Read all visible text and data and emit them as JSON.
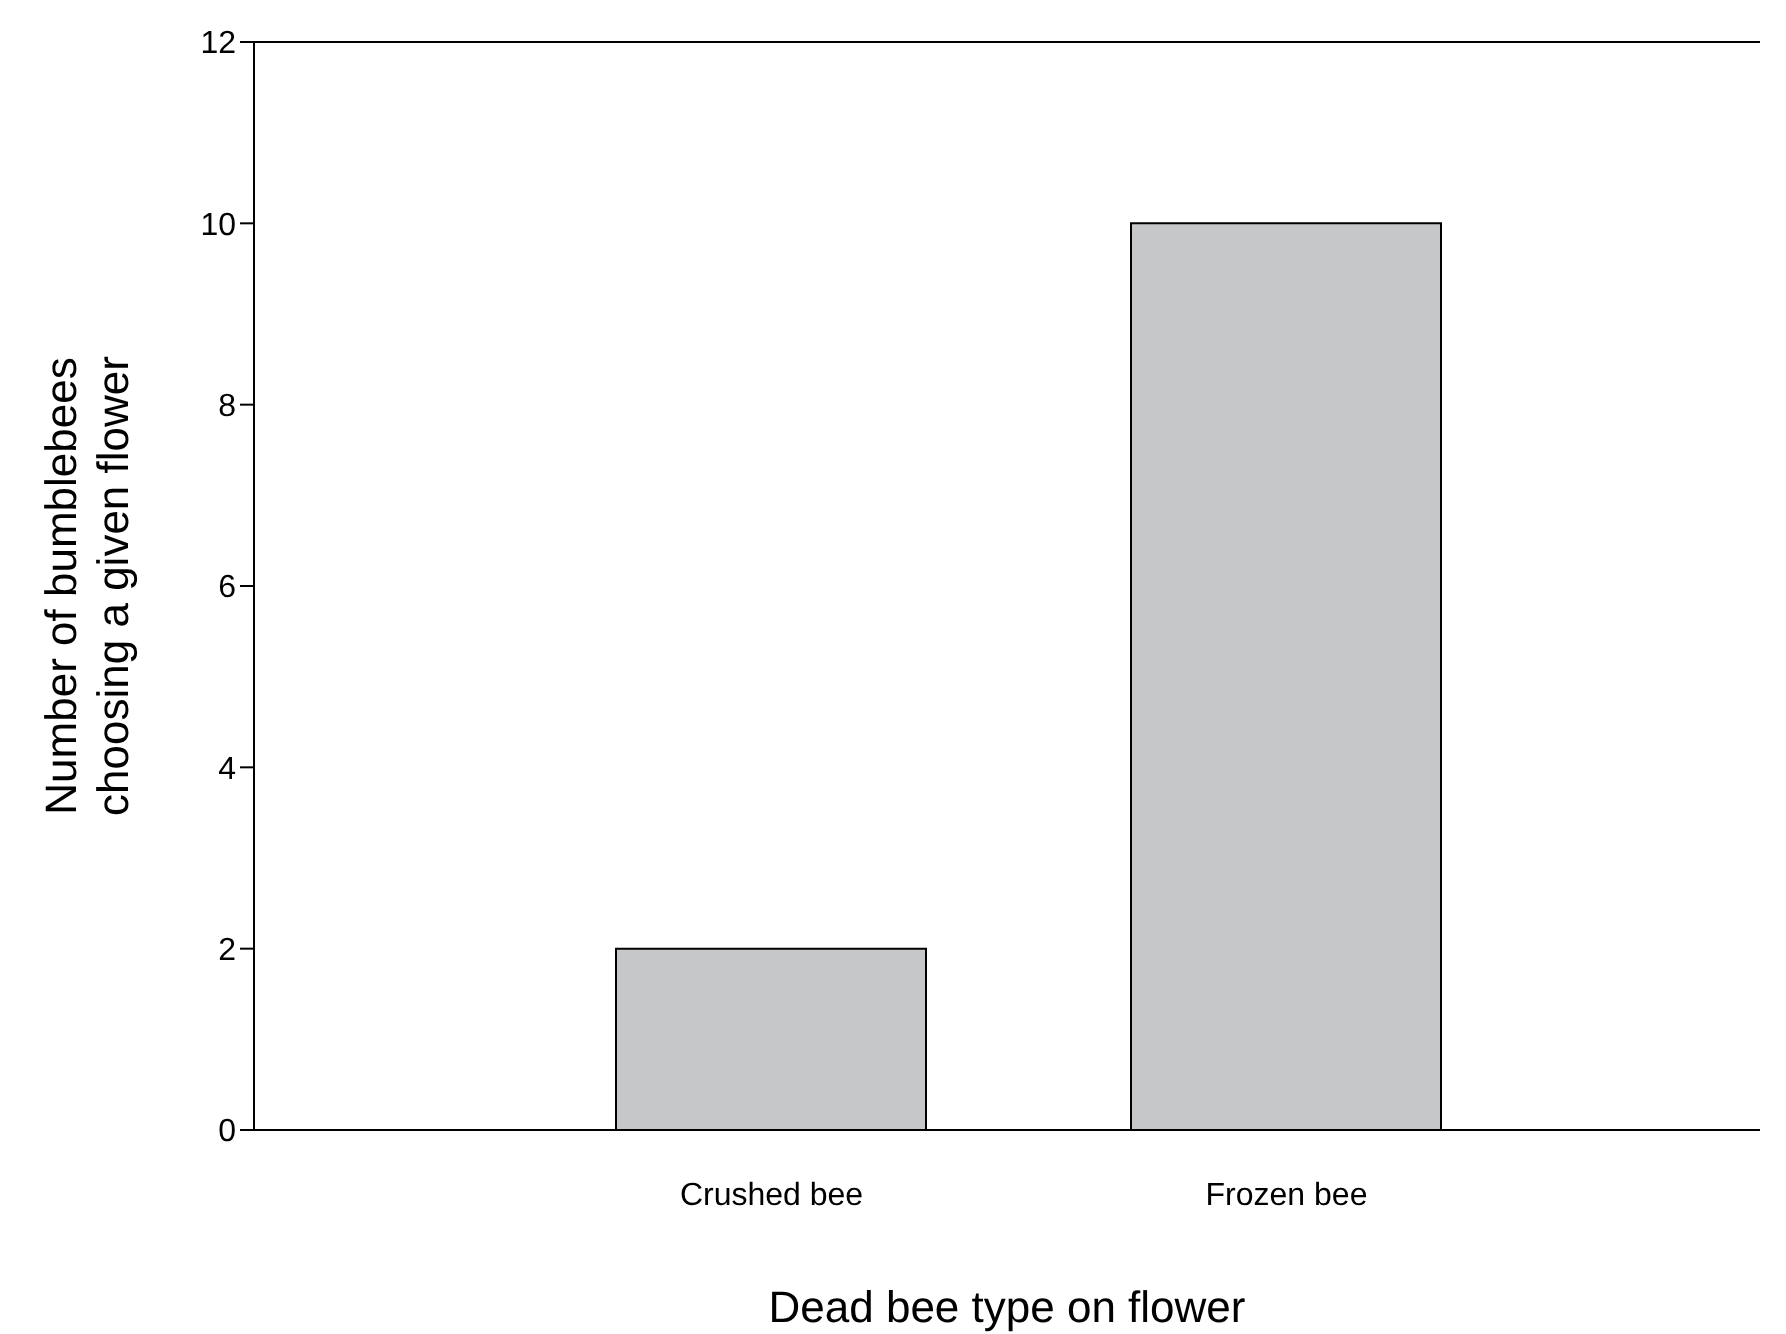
{
  "chart_data": {
    "type": "bar",
    "categories": [
      "Crushed bee",
      "Frozen bee"
    ],
    "values": [
      2,
      10
    ],
    "color": "#c6c7c9",
    "xlabel": "Dead bee type on flower",
    "ylabel": "Number of bumblebees choosing a given flower",
    "ylim": [
      0,
      12
    ],
    "yticks": [
      0,
      2,
      4,
      6,
      8,
      10,
      12
    ],
    "grid": false
  }
}
